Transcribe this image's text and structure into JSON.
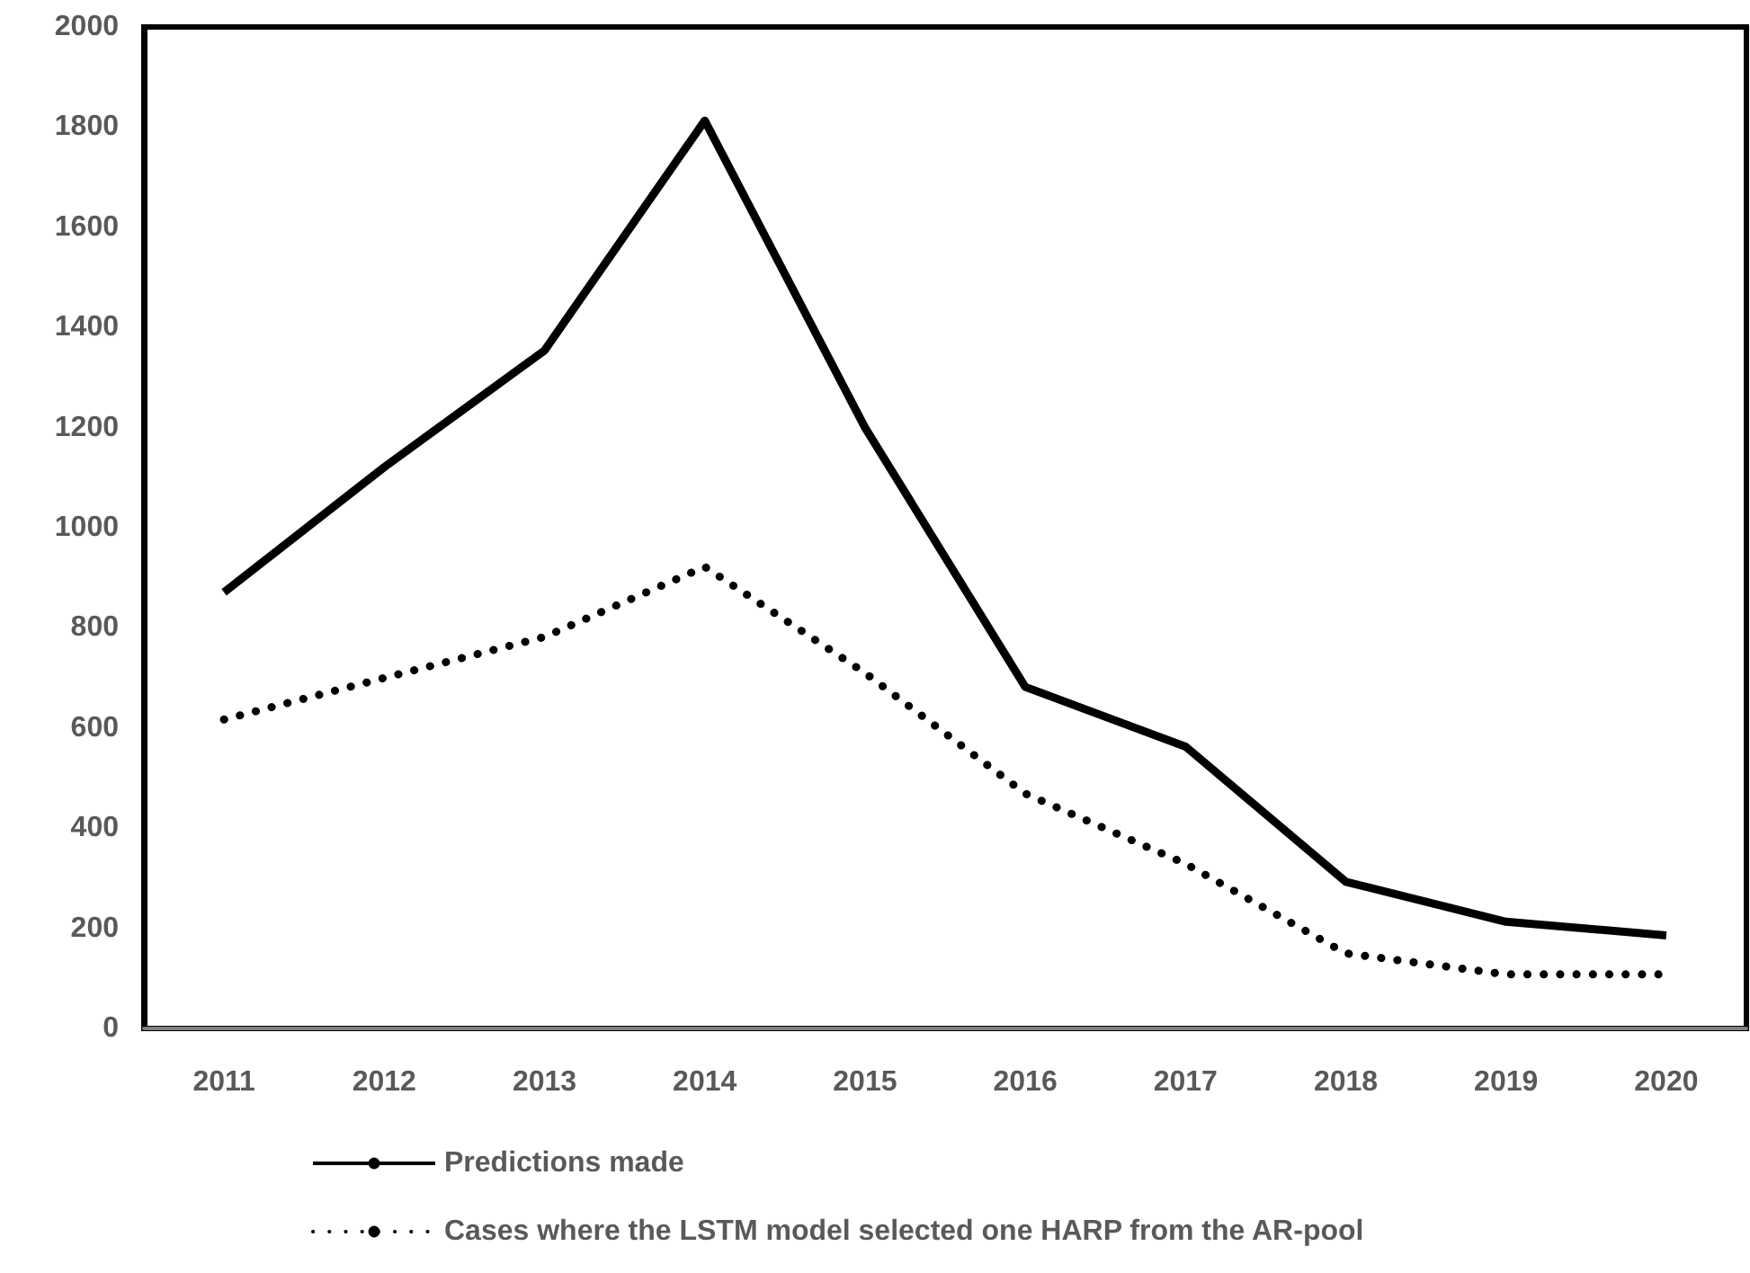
{
  "chart_data": {
    "type": "line",
    "categories": [
      "2011",
      "2012",
      "2013",
      "2014",
      "2015",
      "2016",
      "2017",
      "2018",
      "2019",
      "2020"
    ],
    "series": [
      {
        "name": "Predictions made",
        "color": "#000000",
        "line_style": "solid",
        "values": [
          871,
          1121,
          1354,
          1813,
          1200,
          682,
          563,
          293,
          213,
          186
        ]
      },
      {
        "name": "Cases where the LSTM model selected one HARP from the AR-pool",
        "color": "#000000",
        "line_style": "dotted",
        "values": [
          617,
          700,
          782,
          922,
          710,
          469,
          329,
          150,
          108,
          108
        ]
      }
    ],
    "ylim": [
      0,
      2000
    ],
    "yticks": [
      0,
      200,
      400,
      600,
      800,
      1000,
      1200,
      1400,
      1600,
      1800,
      2000
    ],
    "grid": false,
    "legend": "bottom",
    "marker": "none"
  }
}
